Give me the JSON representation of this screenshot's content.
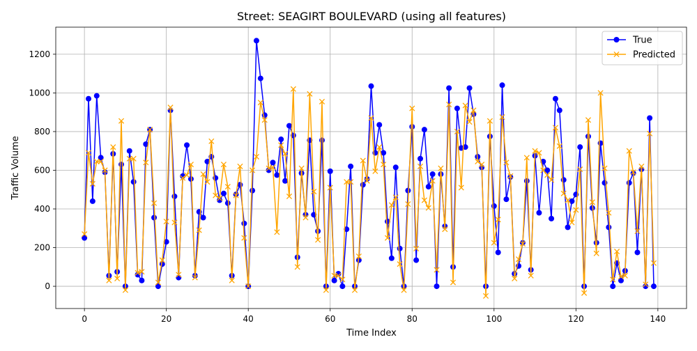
{
  "chart_data": {
    "type": "line",
    "title": "Street: SEAGIRT BOULEVARD (using all features)",
    "xlabel": "Time Index",
    "ylabel": "Traffic Volume",
    "xlim": [
      -7,
      147
    ],
    "ylim": [
      -115,
      1340
    ],
    "xticks": [
      0,
      20,
      40,
      60,
      80,
      100,
      120,
      140
    ],
    "yticks": [
      0,
      200,
      400,
      600,
      800,
      1000,
      1200
    ],
    "grid": true,
    "legend_position": "top-right",
    "series": [
      {
        "name": "True",
        "color": "#0000ff",
        "marker": "circle",
        "values": [
          250,
          970,
          440,
          985,
          665,
          590,
          55,
          685,
          75,
          630,
          0,
          700,
          540,
          60,
          30,
          735,
          810,
          355,
          0,
          115,
          230,
          910,
          465,
          45,
          570,
          730,
          555,
          55,
          385,
          355,
          645,
          670,
          560,
          445,
          480,
          430,
          55,
          475,
          525,
          325,
          0,
          495,
          1270,
          1075,
          885,
          600,
          640,
          575,
          760,
          545,
          830,
          780,
          150,
          585,
          370,
          755,
          370,
          285,
          755,
          0,
          595,
          30,
          65,
          0,
          295,
          620,
          0,
          135,
          525,
          555,
          1035,
          690,
          835,
          690,
          335,
          145,
          615,
          195,
          0,
          495,
          825,
          135,
          660,
          810,
          515,
          580,
          0,
          580,
          310,
          1025,
          100,
          920,
          715,
          720,
          1025,
          890,
          670,
          615,
          0,
          775,
          415,
          175,
          1040,
          450,
          565,
          65,
          105,
          225,
          545,
          85,
          675,
          380,
          645,
          600,
          350,
          970,
          910,
          550,
          305,
          440,
          475,
          720,
          0,
          775,
          405,
          225,
          740,
          535,
          305,
          0,
          120,
          30,
          80,
          535,
          585,
          175,
          605,
          0,
          870,
          0
        ]
      },
      {
        "name": "Predicted",
        "color": "#ffa500",
        "marker": "x",
        "values": [
          270,
          690,
          530,
          645,
          645,
          600,
          30,
          720,
          40,
          855,
          -20,
          660,
          660,
          70,
          75,
          640,
          810,
          430,
          20,
          135,
          335,
          925,
          330,
          60,
          560,
          575,
          630,
          45,
          290,
          580,
          540,
          750,
          470,
          455,
          630,
          515,
          30,
          470,
          620,
          250,
          0,
          600,
          670,
          950,
          860,
          610,
          615,
          280,
          730,
          685,
          465,
          1020,
          100,
          610,
          355,
          995,
          490,
          240,
          955,
          -20,
          510,
          55,
          55,
          35,
          540,
          540,
          -20,
          155,
          650,
          545,
          870,
          595,
          720,
          630,
          250,
          420,
          460,
          115,
          -20,
          425,
          920,
          195,
          620,
          445,
          405,
          545,
          85,
          610,
          295,
          940,
          20,
          800,
          510,
          935,
          850,
          910,
          645,
          630,
          -50,
          855,
          225,
          345,
          875,
          640,
          570,
          40,
          140,
          220,
          665,
          55,
          700,
          690,
          600,
          575,
          550,
          820,
          725,
          480,
          445,
          330,
          395,
          605,
          -35,
          860,
          435,
          170,
          1000,
          610,
          380,
          35,
          180,
          50,
          55,
          700,
          590,
          285,
          620,
          10,
          790,
          120
        ]
      }
    ]
  }
}
